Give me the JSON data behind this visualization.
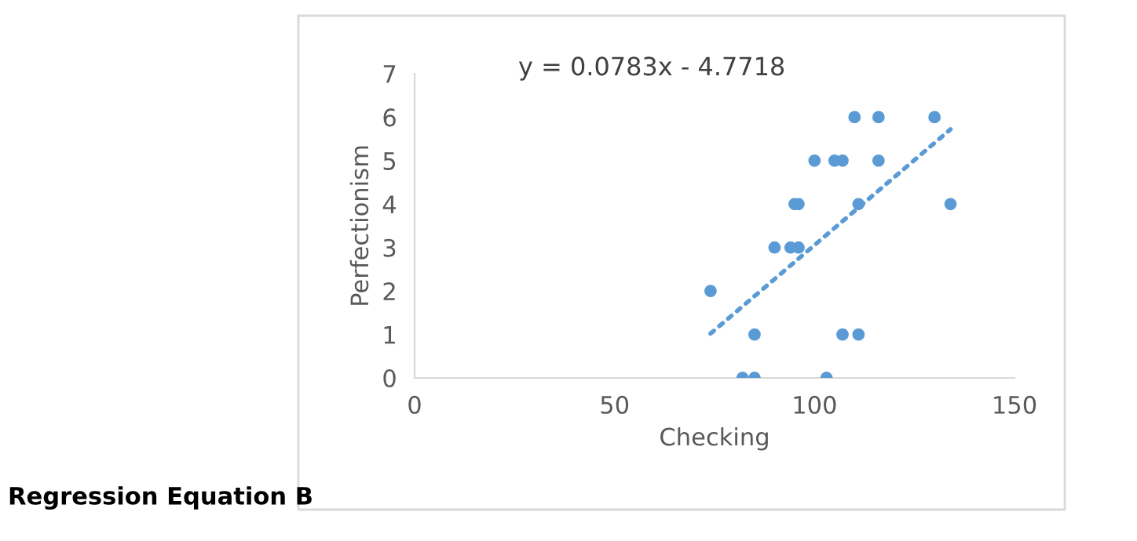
{
  "chart_data": {
    "type": "scatter",
    "xlabel": "Checking",
    "ylabel": "Perfectionism",
    "xlim": [
      0,
      150
    ],
    "ylim": [
      0,
      7
    ],
    "xticks": [
      0,
      50,
      100,
      150
    ],
    "yticks": [
      0,
      1,
      2,
      3,
      4,
      5,
      6,
      7
    ],
    "grid": false,
    "legend": false,
    "series": [
      {
        "marker": "circle",
        "color": "#5b9bd5",
        "x": [
          110,
          116,
          130,
          100,
          105,
          107,
          116,
          95,
          96,
          111,
          134,
          90,
          94,
          96,
          74,
          85,
          107,
          111,
          82,
          85,
          103
        ],
        "values": [
          6,
          6,
          6,
          5,
          5,
          5,
          5,
          4,
          4,
          4,
          4,
          3,
          3,
          3,
          2,
          1,
          1,
          1,
          0,
          0,
          0
        ]
      },
      {
        "type": "line",
        "marker": "none",
        "line_style": "dotted",
        "color": "#5b9bd5",
        "x": [
          74,
          134
        ],
        "values": [
          1.02,
          5.72
        ]
      }
    ],
    "annotations": [
      "y = 0.0783x - 4.7718",
      "Regression Equation B"
    ]
  }
}
